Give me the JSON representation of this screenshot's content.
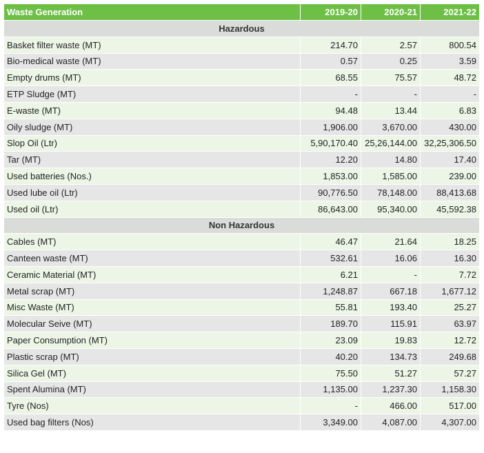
{
  "table": {
    "headers": [
      "Waste Generation",
      "2019-20",
      "2020-21",
      "2021-22"
    ],
    "sections": [
      {
        "title": "Hazardous",
        "rows": [
          [
            "Basket filter waste (MT)",
            "214.70",
            "2.57",
            "800.54"
          ],
          [
            "Bio-medical waste (MT)",
            "0.57",
            "0.25",
            "3.59"
          ],
          [
            "Empty drums (MT)",
            "68.55",
            "75.57",
            "48.72"
          ],
          [
            "ETP Sludge (MT)",
            "-",
            "-",
            "-"
          ],
          [
            "E-waste (MT)",
            "94.48",
            "13.44",
            "6.83"
          ],
          [
            "Oily sludge (MT)",
            "1,906.00",
            "3,670.00",
            "430.00"
          ],
          [
            "Slop Oil (Ltr)",
            "5,90,170.40",
            "25,26,144.00",
            "32,25,306.50"
          ],
          [
            "Tar (MT)",
            "12.20",
            "14.80",
            "17.40"
          ],
          [
            "Used batteries (Nos.)",
            "1,853.00",
            "1,585.00",
            "239.00"
          ],
          [
            "Used lube oil (Ltr)",
            "90,776.50",
            "78,148.00",
            "88,413.68"
          ],
          [
            "Used oil (Ltr)",
            "86,643.00",
            "95,340.00",
            "45,592.38"
          ]
        ]
      },
      {
        "title": "Non Hazardous",
        "rows": [
          [
            "Cables (MT)",
            "46.47",
            "21.64",
            "18.25"
          ],
          [
            "Canteen waste (MT)",
            "532.61",
            "16.06",
            "16.30"
          ],
          [
            "Ceramic Material (MT)",
            "6.21",
            "-",
            "7.72"
          ],
          [
            "Metal scrap (MT)",
            "1,248.87",
            "667.18",
            "1,677.12"
          ],
          [
            "Misc Waste (MT)",
            "55.81",
            "193.40",
            "25.27"
          ],
          [
            "Molecular Seive (MT)",
            "189.70",
            "115.91",
            "63.97"
          ],
          [
            "Paper Consumption (MT)",
            "23.09",
            "19.83",
            "12.72"
          ],
          [
            "Plastic scrap (MT)",
            "40.20",
            "134.73",
            "249.68"
          ],
          [
            "Silica Gel (MT)",
            "75.50",
            "51.27",
            "57.27"
          ],
          [
            "Spent Alumina (MT)",
            "1,135.00",
            "1,237.30",
            "1,158.30"
          ],
          [
            "Tyre (Nos)",
            "-",
            "466.00",
            "517.00"
          ],
          [
            "Used bag filters (Nos)",
            "3,349.00",
            "4,087.00",
            "4,307.00"
          ]
        ]
      }
    ]
  },
  "colors": {
    "header_bg": "#6dbf45",
    "row_light": "#edf5e6",
    "row_grey": "#e6e6e6",
    "section_bg": "#d9dcd9"
  }
}
